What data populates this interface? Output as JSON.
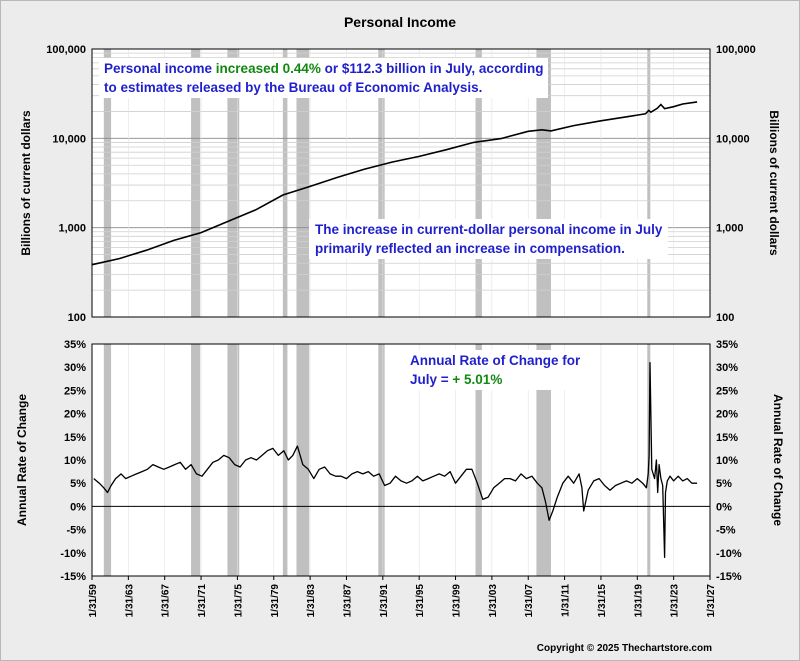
{
  "chart_data": {
    "title": "Personal Income",
    "type": "line",
    "colors": {
      "recession": "#c0c0c0",
      "line": "#000000",
      "note_blue": "#1f1fcc",
      "note_green": "#118811"
    },
    "recessions": [
      [
        1960.3,
        1961.1
      ],
      [
        1969.9,
        1970.9
      ],
      [
        1973.9,
        1975.2
      ],
      [
        1980.0,
        1980.5
      ],
      [
        1981.5,
        1982.9
      ],
      [
        1990.5,
        1991.2
      ],
      [
        2001.2,
        2001.9
      ],
      [
        2007.9,
        2009.5
      ],
      [
        2020.1,
        2020.3
      ]
    ],
    "x_tick_labels": [
      "1/31/59",
      "1/31/63",
      "1/31/67",
      "1/31/71",
      "1/31/75",
      "1/31/79",
      "1/31/83",
      "1/31/87",
      "1/31/91",
      "1/31/95",
      "1/31/99",
      "1/31/03",
      "1/31/07",
      "1/31/11",
      "1/31/15",
      "1/31/19",
      "1/31/23",
      "1/31/27"
    ],
    "x_tick_years": [
      1959,
      1963,
      1967,
      1971,
      1975,
      1979,
      1983,
      1987,
      1991,
      1995,
      1999,
      2003,
      2007,
      2011,
      2015,
      2019,
      2023,
      2027
    ],
    "xlim": [
      1959,
      2027
    ],
    "top_panel": {
      "ylabel": "Billions of current dollars",
      "scale": "log",
      "ylim": [
        100,
        100000
      ],
      "y_tick_labels": [
        "100,000",
        "10,000",
        "1,000",
        "100"
      ],
      "y_tick_values": [
        100000,
        10000,
        1000,
        100
      ],
      "series": {
        "name": "Personal Income",
        "x": [
          1959,
          1962,
          1965,
          1968,
          1971,
          1974,
          1977,
          1980,
          1983,
          1986,
          1989,
          1992,
          1995,
          1998,
          2001,
          2004,
          2007,
          2008.5,
          2009.5,
          2012,
          2015,
          2018,
          2019.9,
          2020.25,
          2020.5,
          2021.2,
          2021.6,
          2022,
          2023,
          2024,
          2025.58
        ],
        "y": [
          385,
          450,
          560,
          720,
          880,
          1180,
          1580,
          2320,
          2900,
          3650,
          4530,
          5420,
          6280,
          7470,
          9010,
          9940,
          12000,
          12450,
          12100,
          13900,
          15700,
          17500,
          18800,
          20500,
          19600,
          21700,
          23900,
          21500,
          22600,
          24200,
          25600
        ]
      },
      "annotations": [
        {
          "segments": [
            {
              "text": "Personal income ",
              "color": "blue"
            },
            {
              "text": "increased 0.44% ",
              "color": "green"
            },
            {
              "text": "or $112.3 billion in July, according",
              "color": "blue"
            }
          ],
          "line2": "to estimates released by the Bureau of Economic Analysis."
        },
        {
          "line1": "The increase in current-dollar personal income in July",
          "line2": "primarily reflected an increase in compensation."
        }
      ]
    },
    "bottom_panel": {
      "ylabel": "Annual Rate of Change",
      "ylim": [
        -15,
        35
      ],
      "y_tick_labels": [
        "35%",
        "30%",
        "25%",
        "20%",
        "15%",
        "10%",
        "5%",
        "0%",
        "-5%",
        "-10%",
        "-15%"
      ],
      "y_tick_values": [
        35,
        30,
        25,
        20,
        15,
        10,
        5,
        0,
        -5,
        -10,
        -15
      ],
      "series": {
        "name": "Annual Rate of Change",
        "x": [
          1959.2,
          1959.8,
          1960.3,
          1960.7,
          1961.1,
          1961.6,
          1962.2,
          1962.7,
          1963.3,
          1963.9,
          1964.5,
          1965.1,
          1965.7,
          1966.3,
          1966.9,
          1967.5,
          1968.1,
          1968.7,
          1969.3,
          1969.9,
          1970.5,
          1971.1,
          1971.7,
          1972.3,
          1972.9,
          1973.5,
          1974.1,
          1974.7,
          1975.3,
          1975.9,
          1976.5,
          1977.1,
          1977.7,
          1978.3,
          1978.9,
          1979.5,
          1980.1,
          1980.6,
          1981.1,
          1981.6,
          1982.2,
          1982.8,
          1983.4,
          1984.0,
          1984.6,
          1985.2,
          1985.8,
          1986.4,
          1987.0,
          1987.6,
          1988.2,
          1988.8,
          1989.4,
          1990.0,
          1990.6,
          1991.2,
          1991.8,
          1992.4,
          1993.0,
          1993.6,
          1994.2,
          1994.8,
          1995.4,
          1996.0,
          1996.6,
          1997.2,
          1997.8,
          1998.4,
          1999.0,
          1999.6,
          2000.2,
          2000.8,
          2001.4,
          2002.0,
          2002.6,
          2003.2,
          2003.8,
          2004.4,
          2005.0,
          2005.6,
          2006.2,
          2006.8,
          2007.4,
          2008.0,
          2008.5,
          2008.9,
          2009.3,
          2009.7,
          2010.2,
          2010.8,
          2011.4,
          2012.0,
          2012.6,
          2012.9,
          2013.1,
          2013.6,
          2014.2,
          2014.8,
          2015.4,
          2016.0,
          2016.6,
          2017.2,
          2017.8,
          2018.4,
          2019.0,
          2019.6,
          2020.0,
          2020.2,
          2020.3,
          2020.4,
          2020.6,
          2020.9,
          2021.1,
          2021.25,
          2021.4,
          2021.6,
          2021.8,
          2022.0,
          2022.1,
          2022.3,
          2022.6,
          2023.0,
          2023.5,
          2024.0,
          2024.5,
          2025.0,
          2025.58
        ],
        "y": [
          6.0,
          5.0,
          4.0,
          3.0,
          4.5,
          6.0,
          7.0,
          6.0,
          6.5,
          7.0,
          7.5,
          8.0,
          9.0,
          8.5,
          8.0,
          8.5,
          9.0,
          9.5,
          8.0,
          9.0,
          7.0,
          6.5,
          8.0,
          9.5,
          10.0,
          11.0,
          10.5,
          9.0,
          8.5,
          10.0,
          10.5,
          10.0,
          11.0,
          12.0,
          12.5,
          11.0,
          12.0,
          10.0,
          11.0,
          13.0,
          9.0,
          8.0,
          6.0,
          8.0,
          8.5,
          7.0,
          6.5,
          6.5,
          6.0,
          7.0,
          7.5,
          7.0,
          7.5,
          6.5,
          7.0,
          4.5,
          5.0,
          6.5,
          5.5,
          5.0,
          5.5,
          6.5,
          5.5,
          6.0,
          6.5,
          7.0,
          6.5,
          7.5,
          5.0,
          6.5,
          8.0,
          8.0,
          5.0,
          1.5,
          2.0,
          4.0,
          5.0,
          6.0,
          6.0,
          5.5,
          7.0,
          6.0,
          6.5,
          5.0,
          4.0,
          1.0,
          -3.0,
          -1.0,
          2.0,
          5.0,
          6.5,
          5.0,
          7.0,
          4.0,
          -1.0,
          3.5,
          5.5,
          6.0,
          4.5,
          3.5,
          4.5,
          5.0,
          5.5,
          5.0,
          6.0,
          5.0,
          4.0,
          7.0,
          11.0,
          31.0,
          8.0,
          6.0,
          10.0,
          3.0,
          9.0,
          6.0,
          4.5,
          -11.0,
          3.0,
          5.5,
          6.5,
          5.5,
          6.5,
          5.5,
          6.0,
          5.0,
          5.0
        ]
      },
      "annotation": {
        "line1": "Annual Rate of Change for",
        "line2_prefix": "July = ",
        "line2_value": "+ 5.01%"
      }
    },
    "copyright": "Copyright © 2025 Thechartstore.com"
  }
}
